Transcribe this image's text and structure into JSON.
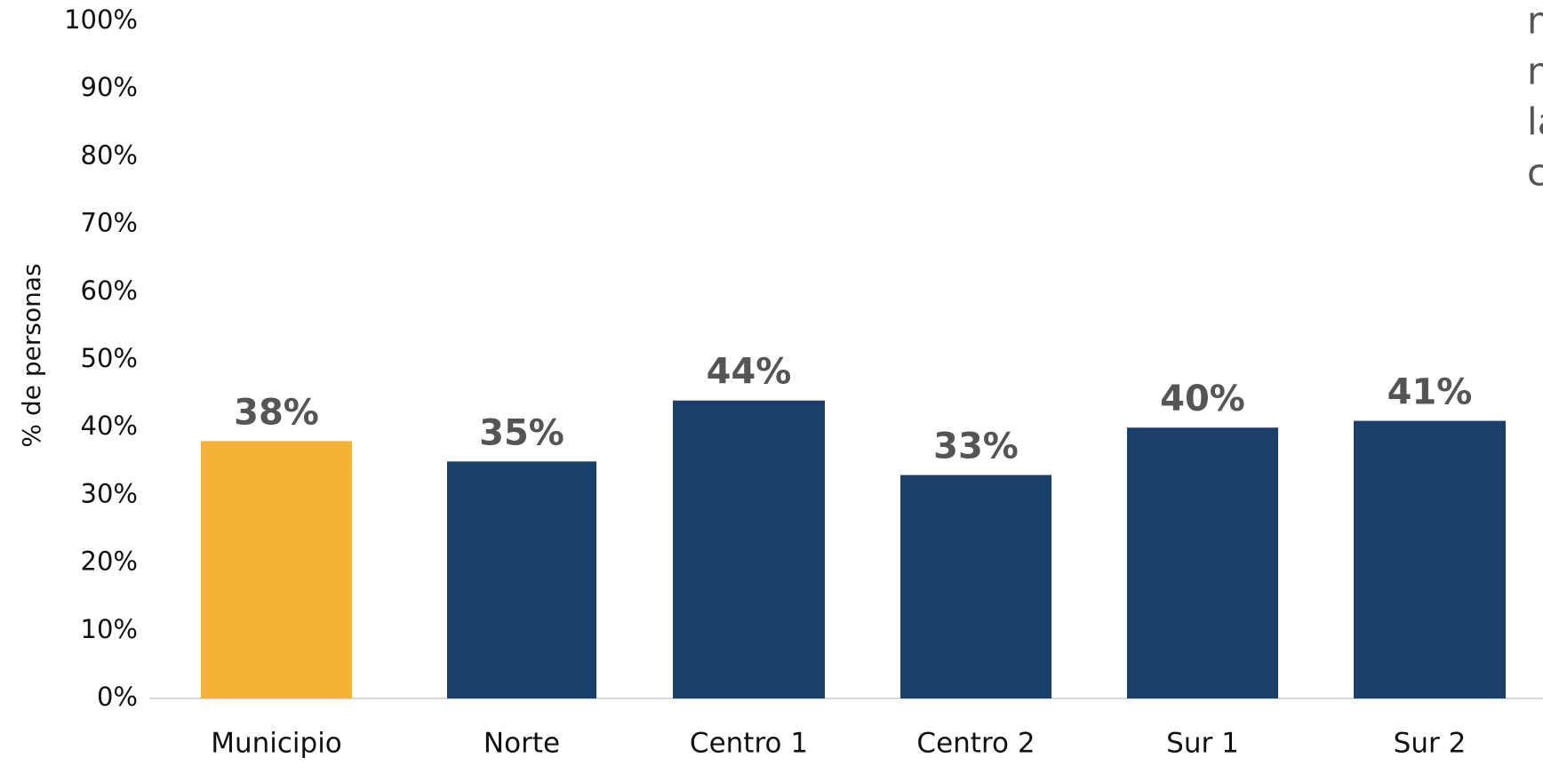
{
  "chart_data": {
    "type": "bar",
    "y_axis_label": "% de personas",
    "categories": [
      "Municipio",
      "Norte",
      "Centro 1",
      "Centro 2",
      "Sur 1",
      "Sur 2"
    ],
    "values": [
      38,
      35,
      44,
      33,
      40,
      41
    ],
    "value_labels": [
      "38%",
      "35%",
      "44%",
      "33%",
      "40%",
      "41%"
    ],
    "colors": [
      "#f5b335",
      "#1b3f6b",
      "#1b3f6b",
      "#1b3f6b",
      "#1b3f6b",
      "#1b3f6b"
    ],
    "ylim": [
      0,
      100
    ],
    "yticks": [
      {
        "value": 0,
        "label": "0%"
      },
      {
        "value": 10,
        "label": "10%"
      },
      {
        "value": 20,
        "label": "20%"
      },
      {
        "value": 30,
        "label": "30%"
      },
      {
        "value": 40,
        "label": "40%"
      },
      {
        "value": 50,
        "label": "50%"
      },
      {
        "value": 60,
        "label": "60%"
      },
      {
        "value": 70,
        "label": "70%"
      },
      {
        "value": 80,
        "label": "80%"
      },
      {
        "value": 90,
        "label": "90%"
      },
      {
        "value": 100,
        "label": "100%"
      }
    ],
    "grid": false,
    "annotation_lines": [
      "n",
      "n",
      "la",
      "c"
    ]
  }
}
